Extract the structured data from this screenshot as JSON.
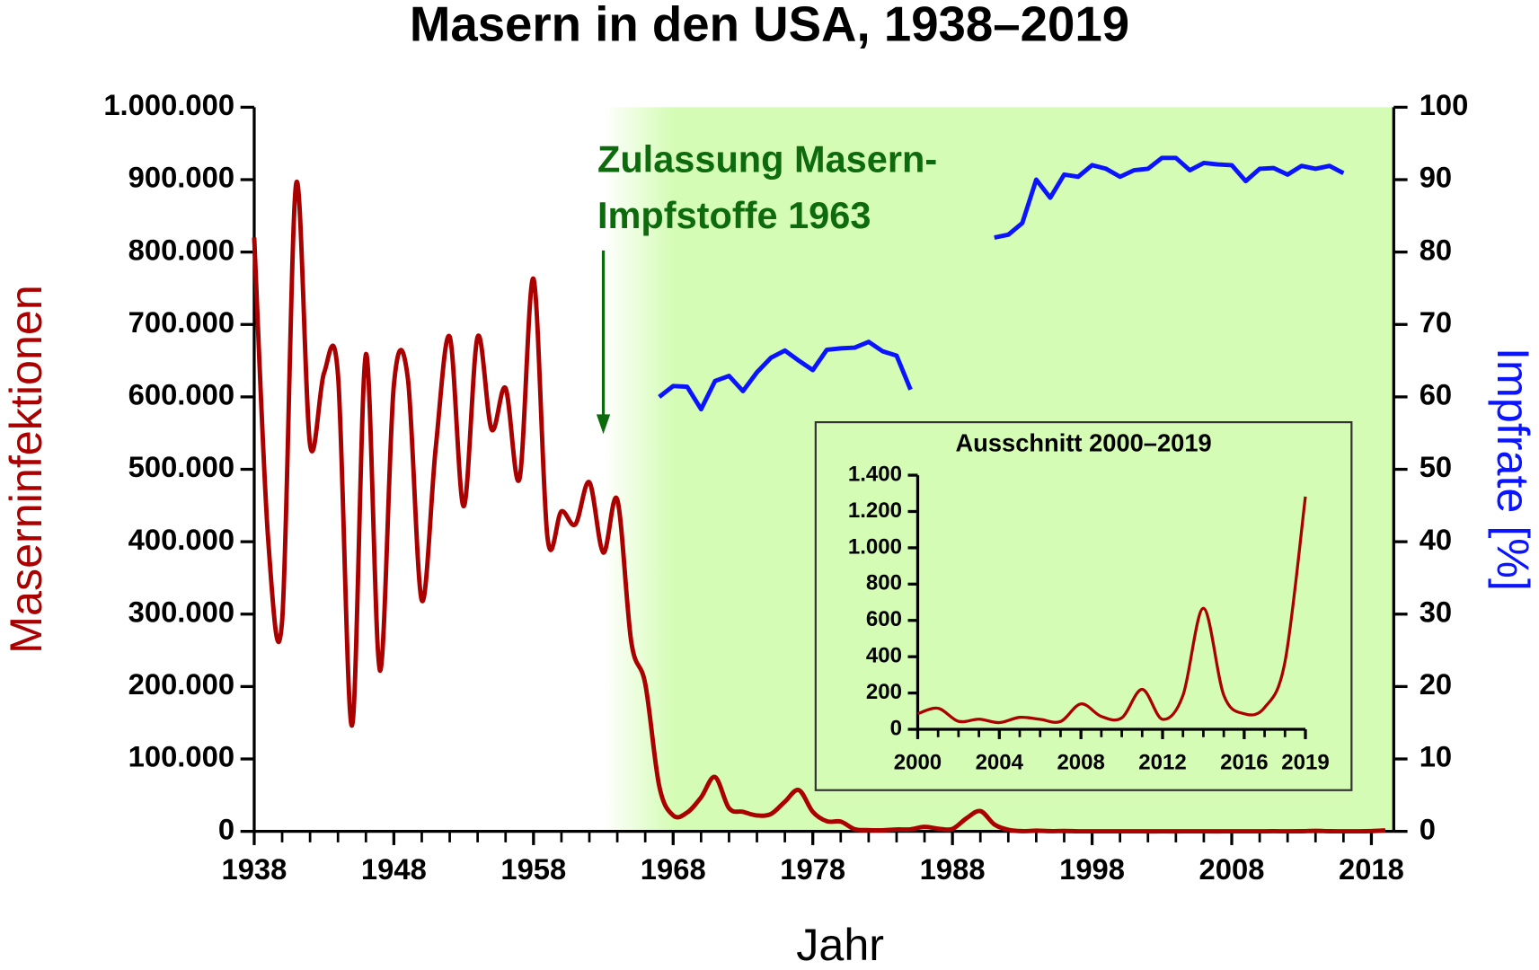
{
  "chart_data": [
    {
      "type": "line",
      "title": "Masern in den USA, 1938–2019",
      "xlabel": "Jahr",
      "ylabel": "Maserninfektionen",
      "y2label": "Impfrate [%]",
      "xlim": [
        1938,
        2019.6
      ],
      "ylim": [
        0,
        1000000
      ],
      "y2lim": [
        0,
        100
      ],
      "xticks": [
        1938,
        1948,
        1958,
        1968,
        1978,
        1988,
        1998,
        2008,
        2018
      ],
      "yticks": [
        0,
        {
          "value": 100000,
          "label": "100.000"
        },
        {
          "value": 200000,
          "label": "200.000"
        },
        {
          "value": 300000,
          "label": "300.000"
        },
        {
          "value": 400000,
          "label": "400.000"
        },
        {
          "value": 500000,
          "label": "500.000"
        },
        {
          "value": 600000,
          "label": "600.000"
        },
        {
          "value": 700000,
          "label": "700.000"
        },
        {
          "value": 800000,
          "label": "800.000"
        },
        {
          "value": 900000,
          "label": "900.000"
        },
        {
          "value": 1000000,
          "label": "1.000.000"
        }
      ],
      "y2ticks": [
        0,
        10,
        20,
        30,
        40,
        50,
        60,
        70,
        80,
        90,
        100
      ],
      "highlight": {
        "from": 1963,
        "color": "#d4fcb4"
      },
      "annotation": {
        "text": [
          "Zulassung Masern-",
          "Impfstoffe 1963"
        ],
        "x": 1963,
        "color": "#0d6b0d"
      },
      "x": [
        1938,
        1939,
        1940,
        1941,
        1942,
        1943,
        1944,
        1945,
        1946,
        1947,
        1948,
        1949,
        1950,
        1951,
        1952,
        1953,
        1954,
        1955,
        1956,
        1957,
        1958,
        1959,
        1960,
        1961,
        1962,
        1963,
        1964,
        1965,
        1966,
        1967,
        1968,
        1969,
        1970,
        1971,
        1972,
        1973,
        1974,
        1975,
        1976,
        1977,
        1978,
        1979,
        1980,
        1981,
        1982,
        1983,
        1984,
        1985,
        1986,
        1987,
        1988,
        1989,
        1990,
        1991,
        1992,
        1993,
        1994,
        1995,
        1996,
        1997,
        1998,
        1999,
        2000,
        2001,
        2002,
        2003,
        2004,
        2005,
        2006,
        2007,
        2008,
        2009,
        2010,
        2011,
        2012,
        2013,
        2014,
        2015,
        2016,
        2017,
        2018,
        2019
      ],
      "series": [
        {
          "color": "#aa0000",
          "smooth": true,
          "values": [
            820000,
            403000,
            291000,
            894000,
            534000,
            633000,
            630000,
            146000,
            659000,
            222000,
            616000,
            626000,
            319000,
            530000,
            683000,
            449000,
            683000,
            555000,
            612000,
            487000,
            763000,
            406000,
            442000,
            424000,
            482000,
            385000,
            458000,
            262000,
            204000,
            63000,
            22000,
            26000,
            47000,
            75000,
            32000,
            27000,
            22000,
            24000,
            41000,
            57000,
            27000,
            14000,
            13500,
            3000,
            1700,
            1500,
            2600,
            2800,
            6300,
            3700,
            3400,
            18000,
            28000,
            9600,
            2200,
            312,
            963,
            309,
            508,
            138,
            100,
            100,
            86,
            116,
            44,
            56,
            37,
            66,
            55,
            43,
            140,
            71,
            63,
            220,
            55,
            187,
            667,
            188,
            86,
            120,
            372,
            1282
          ]
        },
        {
          "color": "#0a14ff",
          "axis": "y2",
          "smooth": false,
          "values": [
            null,
            null,
            null,
            null,
            null,
            null,
            null,
            null,
            null,
            null,
            null,
            null,
            null,
            null,
            null,
            null,
            null,
            null,
            null,
            null,
            null,
            null,
            null,
            null,
            null,
            null,
            null,
            null,
            null,
            60,
            61.5,
            61.4,
            58.3,
            62.2,
            62.9,
            60.8,
            63.4,
            65.4,
            66.4,
            65,
            63.7,
            66.5,
            66.7,
            66.8,
            67.6,
            66.3,
            65.7,
            61,
            null,
            null,
            null,
            null,
            null,
            82,
            82.4,
            84,
            90,
            87.5,
            90.7,
            90.4,
            92,
            91.5,
            90.4,
            91.3,
            91.5,
            93,
            93,
            91.3,
            92.3,
            92.1,
            92,
            89.8,
            91.5,
            91.6,
            90.7,
            91.9,
            91.5,
            91.9,
            90.9,
            null,
            null,
            null
          ]
        }
      ]
    },
    {
      "type": "line",
      "title": "Ausschnitt 2000–2019",
      "xlim": [
        2000,
        2019
      ],
      "ylim": [
        0,
        1400
      ],
      "xticks": [
        2000,
        2004,
        2008,
        2012,
        2016,
        2019
      ],
      "yticks": [
        0,
        200,
        400,
        600,
        800,
        {
          "value": 1000,
          "label": "1.000"
        },
        {
          "value": 1200,
          "label": "1.200"
        },
        {
          "value": 1400,
          "label": "1.400"
        }
      ],
      "x": [
        2000,
        2001,
        2002,
        2003,
        2004,
        2005,
        2006,
        2007,
        2008,
        2009,
        2010,
        2011,
        2012,
        2013,
        2014,
        2015,
        2016,
        2017,
        2018,
        2019
      ],
      "series": [
        {
          "color": "#aa0000",
          "smooth": true,
          "values": [
            86,
            116,
            44,
            56,
            37,
            66,
            55,
            43,
            140,
            71,
            63,
            220,
            55,
            187,
            667,
            188,
            86,
            120,
            372,
            1282
          ]
        }
      ]
    }
  ]
}
